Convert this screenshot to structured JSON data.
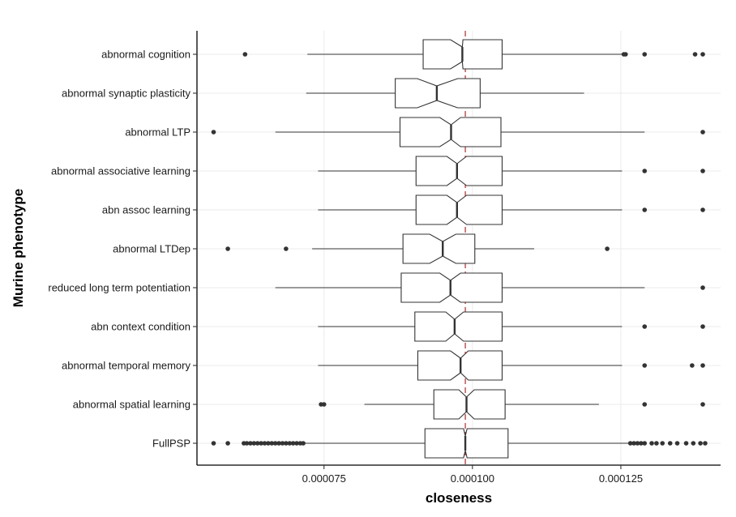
{
  "chart_data": {
    "type": "boxplot",
    "orientation": "horizontal",
    "notched": true,
    "xlabel": "closeness",
    "ylabel": "Murine phenotype",
    "xlim": [
      5.36e-05,
      0.0001418
    ],
    "x_ticks": [
      {
        "value": 7.5e-05,
        "label": "0.000075"
      },
      {
        "value": 0.0001,
        "label": "0.000100"
      },
      {
        "value": 0.000125,
        "label": "0.000125"
      }
    ],
    "reference_line": {
      "value": 9.88e-05,
      "style": "dashed",
      "color": "#d7191c"
    },
    "grid": true,
    "categories": [
      "abnormal cognition",
      "abnormal synaptic plasticity",
      "abnormal LTP",
      "abnormal associative learning",
      "abn assoc learning",
      "abnormal LTDep",
      "reduced long term potentiation",
      "abn context condition",
      "abnormal temporal memory",
      "abnormal spatial learning",
      "FullPSP"
    ],
    "boxes": [
      {
        "category": "abnormal cognition",
        "whisker_low": 7.22e-05,
        "q1": 9.17e-05,
        "median": 9.83e-05,
        "q3": 0.000105,
        "whisker_high": 0.0001252,
        "notch_low": 9.63e-05,
        "notch_high": 9.84e-05,
        "outliers": [
          6.17e-05,
          0.0001255,
          0.0001258,
          0.000129,
          0.0001375,
          0.0001388
        ]
      },
      {
        "category": "abnormal synaptic plasticity",
        "whisker_low": 7.2e-05,
        "q1": 8.7e-05,
        "median": 9.4e-05,
        "q3": 0.0001013,
        "whisker_high": 0.0001188,
        "notch_low": 9.07e-05,
        "notch_high": 9.75e-05,
        "outliers": []
      },
      {
        "category": "abnormal LTP",
        "whisker_low": 6.68e-05,
        "q1": 8.78e-05,
        "median": 9.64e-05,
        "q3": 0.0001048,
        "whisker_high": 0.000129,
        "notch_low": 9.45e-05,
        "notch_high": 9.8e-05,
        "outliers": [
          5.64e-05,
          0.0001388
        ]
      },
      {
        "category": "abnormal associative learning",
        "whisker_low": 7.4e-05,
        "q1": 9.05e-05,
        "median": 9.74e-05,
        "q3": 0.000105,
        "whisker_high": 0.0001252,
        "notch_low": 9.57e-05,
        "notch_high": 9.9e-05,
        "outliers": [
          0.000129,
          0.0001388
        ]
      },
      {
        "category": "abn assoc learning",
        "whisker_low": 7.4e-05,
        "q1": 9.05e-05,
        "median": 9.74e-05,
        "q3": 0.000105,
        "whisker_high": 0.0001252,
        "notch_low": 9.57e-05,
        "notch_high": 9.9e-05,
        "outliers": [
          0.000129,
          0.0001388
        ]
      },
      {
        "category": "abnormal LTDep",
        "whisker_low": 7.3e-05,
        "q1": 8.83e-05,
        "median": 9.5e-05,
        "q3": 0.0001004,
        "whisker_high": 0.0001104,
        "notch_low": 9.28e-05,
        "notch_high": 9.72e-05,
        "outliers": [
          5.88e-05,
          6.86e-05,
          0.0001227
        ]
      },
      {
        "category": "reduced long term potentiation",
        "whisker_low": 6.68e-05,
        "q1": 8.8e-05,
        "median": 9.63e-05,
        "q3": 0.000105,
        "whisker_high": 0.000129,
        "notch_low": 9.45e-05,
        "notch_high": 9.8e-05,
        "outliers": [
          0.0001388
        ]
      },
      {
        "category": "abn context condition",
        "whisker_low": 7.4e-05,
        "q1": 9.03e-05,
        "median": 9.7e-05,
        "q3": 0.000105,
        "whisker_high": 0.0001252,
        "notch_low": 9.55e-05,
        "notch_high": 9.85e-05,
        "outliers": [
          0.000129,
          0.0001388
        ]
      },
      {
        "category": "abnormal temporal memory",
        "whisker_low": 7.4e-05,
        "q1": 9.08e-05,
        "median": 9.8e-05,
        "q3": 0.000105,
        "whisker_high": 0.0001252,
        "notch_low": 9.63e-05,
        "notch_high": 9.93e-05,
        "outliers": [
          0.000129,
          0.000137,
          0.0001388
        ]
      },
      {
        "category": "abnormal spatial learning",
        "whisker_low": 8.18e-05,
        "q1": 9.35e-05,
        "median": 9.9e-05,
        "q3": 0.0001055,
        "whisker_high": 0.0001213,
        "notch_low": 9.77e-05,
        "notch_high": 0.0001003,
        "outliers": [
          7.45e-05,
          7.5e-05,
          0.000129,
          0.0001388
        ]
      },
      {
        "category": "FullPSP",
        "whisker_low": 7.18e-05,
        "q1": 9.2e-05,
        "median": 9.88e-05,
        "q3": 0.000106,
        "whisker_high": 0.0001263,
        "notch_low": 9.85e-05,
        "notch_high": 9.91e-05,
        "outliers": [
          5.64e-05,
          5.88e-05,
          6.15e-05,
          6.2e-05,
          6.26e-05,
          6.32e-05,
          6.38e-05,
          6.44e-05,
          6.5e-05,
          6.56e-05,
          6.62e-05,
          6.68e-05,
          6.74e-05,
          6.8e-05,
          6.86e-05,
          6.92e-05,
          6.98e-05,
          7.04e-05,
          7.1e-05,
          7.15e-05,
          0.0001266,
          0.0001272,
          0.0001278,
          0.0001284,
          0.000129,
          0.0001302,
          0.000131,
          0.000132,
          0.0001333,
          0.0001345,
          0.000136,
          0.0001372,
          0.0001384,
          0.0001392
        ]
      }
    ]
  }
}
